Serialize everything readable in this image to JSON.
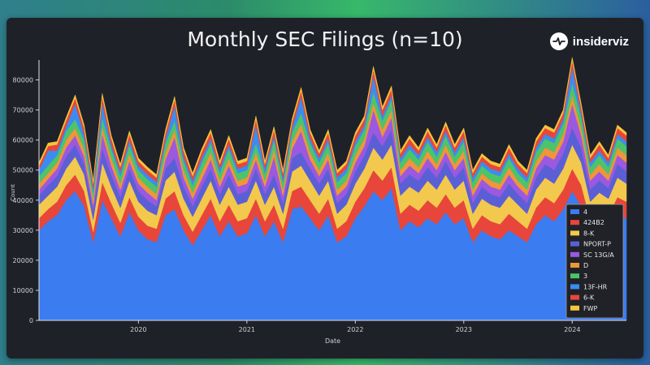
{
  "brand": {
    "name": "insiderviz",
    "logo_icon": "heartbeat-logo-icon"
  },
  "chart_data": {
    "type": "area",
    "stacked": true,
    "title": "Monthly SEC Filings (n=10)",
    "xlabel": "Date",
    "ylabel": "Count",
    "ylim": [
      0,
      85000
    ],
    "yticks": [
      0,
      10000,
      20000,
      30000,
      40000,
      50000,
      60000,
      70000,
      80000
    ],
    "xticks": [
      "2020",
      "2021",
      "2022",
      "2023",
      "2024"
    ],
    "legend_position": "bottom-right",
    "x_start": "2019-02",
    "x_end": "2024-07",
    "series": [
      {
        "name": "4",
        "color": "#3b7cf0",
        "values": [
          30000,
          33000,
          35000,
          40000,
          43000,
          38000,
          26000,
          40000,
          34000,
          28000,
          36000,
          30000,
          27000,
          26000,
          35000,
          37000,
          30000,
          25000,
          30000,
          35000,
          28000,
          33000,
          28000,
          29000,
          35000,
          28000,
          33000,
          26000,
          37000,
          38000,
          34000,
          30000,
          35000,
          26000,
          28000,
          34000,
          38000,
          43000,
          40000,
          44000,
          30000,
          33000,
          31000,
          34000,
          32000,
          36000,
          32000,
          34000,
          26000,
          30000,
          28000,
          27000,
          30000,
          28000,
          26000,
          32000,
          35000,
          33000,
          37000,
          43000,
          38000,
          28000,
          31000,
          30000,
          35000,
          34000
        ]
      },
      {
        "name": "424B2",
        "color": "#e8463a",
        "values": [
          4000,
          4000,
          4500,
          5000,
          5500,
          5000,
          3500,
          6000,
          5000,
          4500,
          5000,
          4500,
          4500,
          4500,
          5500,
          6000,
          5000,
          4500,
          5000,
          5500,
          5000,
          5500,
          5000,
          5000,
          5500,
          5000,
          5500,
          4500,
          6000,
          6500,
          6000,
          5500,
          5500,
          4500,
          5000,
          5500,
          6000,
          7000,
          6500,
          7000,
          5500,
          5500,
          5500,
          6000,
          5500,
          6000,
          5500,
          6000,
          4500,
          5000,
          5000,
          5000,
          5500,
          5000,
          4500,
          5500,
          6000,
          6000,
          6500,
          7500,
          7000,
          5500,
          5500,
          5000,
          6000,
          5500
        ]
      },
      {
        "name": "8-K",
        "color": "#f2c94c",
        "values": [
          4500,
          4500,
          5000,
          5500,
          6000,
          5500,
          4000,
          6500,
          5500,
          5000,
          5500,
          5000,
          5000,
          4500,
          6000,
          6500,
          5500,
          5000,
          5500,
          6000,
          5500,
          6000,
          5500,
          5500,
          6000,
          5500,
          6000,
          5000,
          6500,
          7000,
          6500,
          6000,
          6000,
          5000,
          5500,
          6000,
          6500,
          7500,
          7000,
          7500,
          6000,
          6000,
          6000,
          6500,
          6000,
          6500,
          6000,
          6500,
          5000,
          5500,
          5500,
          5500,
          6000,
          5500,
          5000,
          6000,
          6500,
          6500,
          7000,
          8000,
          7500,
          6000,
          6000,
          5500,
          6500,
          6000
        ]
      },
      {
        "name": "NPORT-P",
        "color": "#5b5fd6",
        "values": [
          3000,
          3500,
          3500,
          4000,
          4000,
          3500,
          3000,
          4500,
          4000,
          3500,
          4000,
          3500,
          3500,
          3000,
          4000,
          4500,
          4000,
          3500,
          4000,
          4000,
          3500,
          4000,
          3500,
          3500,
          4000,
          3500,
          4000,
          3500,
          4500,
          4500,
          4000,
          4000,
          4000,
          3500,
          3500,
          4000,
          4500,
          5000,
          4500,
          5000,
          4000,
          4000,
          4000,
          4500,
          4000,
          4500,
          4000,
          4500,
          3500,
          4000,
          3500,
          3500,
          4000,
          3500,
          3500,
          4000,
          4500,
          4500,
          5000,
          5500,
          5000,
          4000,
          4000,
          3500,
          4500,
          4000
        ]
      },
      {
        "name": "SC 13G/A",
        "color": "#9b59e0",
        "values": [
          2000,
          2000,
          2500,
          3000,
          3000,
          2500,
          2000,
          5000,
          3000,
          2500,
          2500,
          2500,
          2500,
          2000,
          3000,
          7000,
          3000,
          2500,
          2500,
          3000,
          2500,
          3000,
          2500,
          2500,
          3000,
          2500,
          6000,
          2500,
          3000,
          7000,
          3000,
          2500,
          3000,
          2500,
          2500,
          3000,
          3000,
          7500,
          3000,
          4000,
          2500,
          3000,
          2500,
          3000,
          2500,
          3000,
          2500,
          3000,
          2500,
          2500,
          2500,
          2500,
          3000,
          2500,
          2500,
          3000,
          3000,
          3500,
          4000,
          8000,
          4000,
          3000,
          3000,
          2500,
          3000,
          3000
        ]
      },
      {
        "name": "D",
        "color": "#f0953a",
        "values": [
          2000,
          2000,
          2000,
          2500,
          2500,
          2500,
          2000,
          2500,
          2500,
          2000,
          2500,
          2000,
          2000,
          2000,
          2500,
          2500,
          2500,
          2000,
          2500,
          2500,
          2000,
          2500,
          2000,
          2000,
          2500,
          2000,
          2500,
          2000,
          2500,
          2500,
          2500,
          2000,
          2500,
          2000,
          2000,
          2500,
          2500,
          2500,
          2500,
          2500,
          2000,
          2500,
          2000,
          2500,
          2000,
          2500,
          2000,
          2500,
          2000,
          2000,
          2000,
          2000,
          2500,
          2000,
          2000,
          2500,
          2500,
          2500,
          2500,
          3000,
          2500,
          2000,
          2500,
          2000,
          2500,
          2500
        ]
      },
      {
        "name": "3",
        "color": "#4cc46a",
        "values": [
          2500,
          2500,
          2500,
          3000,
          3000,
          3000,
          2000,
          3000,
          3000,
          2500,
          3000,
          2500,
          2500,
          2500,
          3000,
          3000,
          3000,
          2500,
          3000,
          3000,
          2500,
          3000,
          2500,
          2500,
          3000,
          2500,
          3000,
          2500,
          3000,
          3500,
          3000,
          2500,
          3000,
          2500,
          2500,
          3000,
          3000,
          3500,
          3000,
          3500,
          2500,
          3000,
          2500,
          3000,
          2500,
          3000,
          2500,
          3000,
          2500,
          2500,
          2500,
          2500,
          3000,
          2500,
          2500,
          3000,
          3000,
          3000,
          3500,
          4000,
          3500,
          2500,
          3000,
          2500,
          3000,
          3000
        ]
      },
      {
        "name": "13F-HR",
        "color": "#3b8cf0",
        "values": [
          2000,
          5000,
          1500,
          1500,
          5000,
          2000,
          1500,
          5000,
          1500,
          1500,
          1500,
          1500,
          1500,
          1500,
          1500,
          5000,
          1500,
          1500,
          1500,
          1500,
          1500,
          1500,
          1500,
          1500,
          6000,
          1500,
          1500,
          1500,
          1500,
          5500,
          1500,
          1500,
          1500,
          1500,
          1500,
          1500,
          1500,
          5500,
          1500,
          1500,
          1500,
          1500,
          1500,
          1500,
          1500,
          1500,
          1500,
          1500,
          1500,
          1500,
          1500,
          1500,
          1500,
          1500,
          1500,
          1500,
          1500,
          1500,
          1500,
          5500,
          1500,
          1500,
          1500,
          1500,
          1500,
          1500
        ]
      },
      {
        "name": "6-K",
        "color": "#e8463a",
        "values": [
          1500,
          1500,
          2000,
          2000,
          2000,
          2000,
          1500,
          2000,
          2000,
          1500,
          2000,
          1500,
          1500,
          1500,
          2000,
          2000,
          2000,
          1500,
          2000,
          2000,
          1500,
          2000,
          1500,
          1500,
          2000,
          1500,
          2000,
          1500,
          2000,
          2000,
          2000,
          1500,
          2000,
          1500,
          1500,
          2000,
          2000,
          2000,
          2000,
          2000,
          1500,
          2000,
          1500,
          2000,
          1500,
          2000,
          1500,
          2000,
          1500,
          1500,
          1500,
          1500,
          2000,
          1500,
          1500,
          2000,
          2000,
          2000,
          2000,
          2000,
          2000,
          1500,
          2000,
          1500,
          2000,
          2000
        ]
      },
      {
        "name": "FWP",
        "color": "#f5c53a",
        "values": [
          1000,
          1000,
          1000,
          1000,
          1000,
          1000,
          1000,
          1000,
          1000,
          1000,
          1000,
          1000,
          1000,
          1000,
          1000,
          1000,
          1000,
          1000,
          1000,
          1000,
          1000,
          1000,
          1000,
          1000,
          1000,
          1000,
          1000,
          1000,
          1000,
          1000,
          1000,
          1000,
          1000,
          1000,
          1000,
          1000,
          1000,
          1000,
          1000,
          1000,
          1000,
          1000,
          1000,
          1000,
          1000,
          1000,
          1000,
          1000,
          1000,
          1000,
          1000,
          1000,
          1000,
          1000,
          1000,
          1000,
          1000,
          1000,
          1000,
          1000,
          1000,
          1000,
          1000,
          1000,
          1000,
          1000
        ]
      }
    ]
  }
}
